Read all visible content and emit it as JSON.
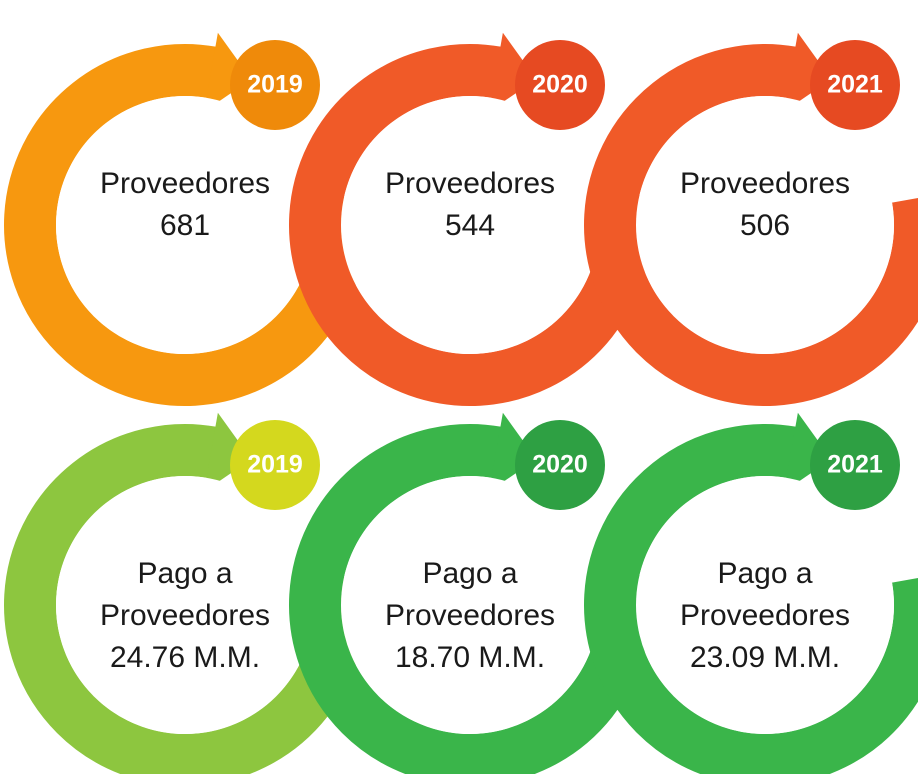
{
  "rows": [
    {
      "items": [
        {
          "year": "2019",
          "lines": [
            "Proveedores",
            "681"
          ]
        },
        {
          "year": "2020",
          "lines": [
            "Proveedores",
            "544"
          ]
        },
        {
          "year": "2021",
          "lines": [
            "Proveedores",
            "506"
          ]
        }
      ]
    },
    {
      "items": [
        {
          "year": "2019",
          "lines": [
            "Pago a",
            "Proveedores",
            "24.76 M.M."
          ]
        },
        {
          "year": "2020",
          "lines": [
            "Pago a",
            "Proveedores",
            "18.70 M.M."
          ]
        },
        {
          "year": "2021",
          "lines": [
            "Pago a",
            "Proveedores",
            "23.09 M.M."
          ]
        }
      ]
    }
  ]
}
